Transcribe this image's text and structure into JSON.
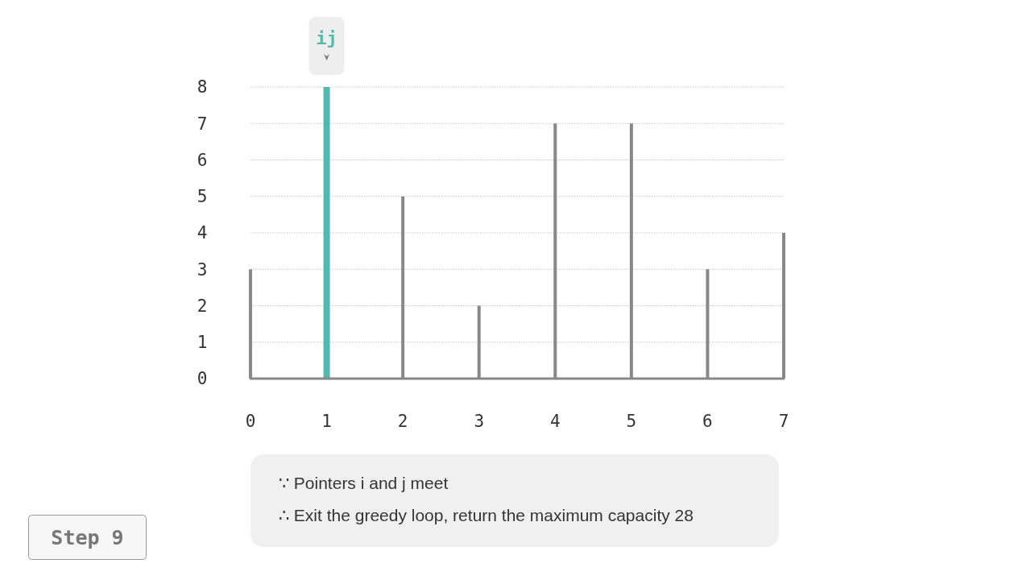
{
  "chart_data": {
    "type": "bar",
    "categories": [
      "0",
      "1",
      "2",
      "3",
      "4",
      "5",
      "6",
      "7"
    ],
    "values": [
      3,
      8,
      5,
      2,
      7,
      7,
      3,
      4
    ],
    "colors": [
      "#888888",
      "#52b9ae",
      "#888888",
      "#888888",
      "#888888",
      "#888888",
      "#888888",
      "#888888"
    ],
    "ylim": [
      0,
      8
    ],
    "yticks": [
      0,
      1,
      2,
      3,
      4,
      5,
      6,
      7,
      8
    ],
    "grid": "y",
    "annotations": [
      {
        "text": "ij",
        "x": "1",
        "y": 8
      },
      "∵ Pointers i and j meet",
      "∴ Exit the greedy loop, return the maximum capacity 28",
      "Step 9"
    ]
  }
}
